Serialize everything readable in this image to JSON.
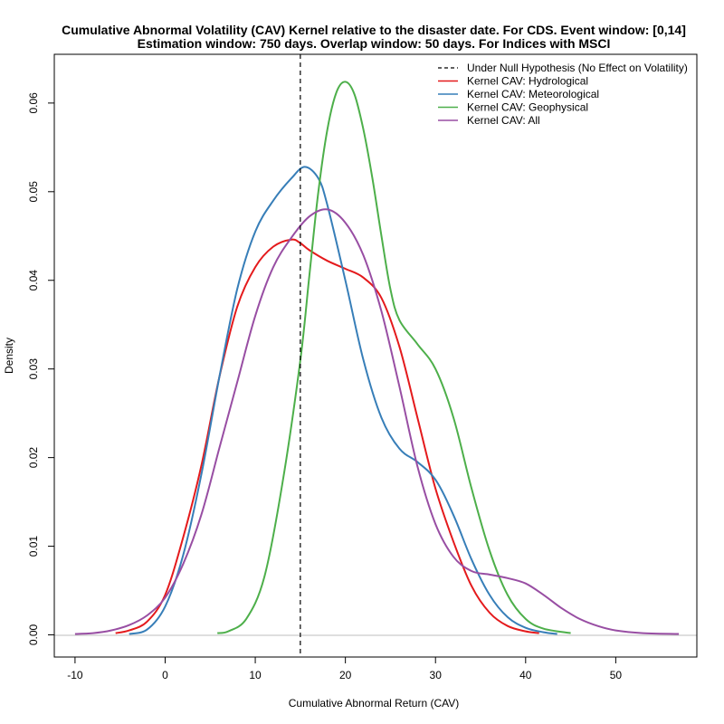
{
  "chart_data": {
    "type": "line",
    "title_line1": "Cumulative Abnormal Volatility (CAV) Kernel relative to the disaster date. For CDS. Event window: [0,14]",
    "title_line2": "Estimation window: 750 days. Overlap window: 50 days. For Indices with MSCI",
    "xlabel": "Cumulative Abnormal Return (CAV)",
    "ylabel": "Density",
    "xlim": [
      -12.3,
      59.0
    ],
    "ylim": [
      -0.0025,
      0.0655
    ],
    "x_ticks": [
      -10,
      0,
      10,
      20,
      30,
      40,
      50
    ],
    "x_tick_labels": [
      "-10",
      "0",
      "10",
      "20",
      "30",
      "40",
      "50"
    ],
    "y_ticks": [
      0.0,
      0.01,
      0.02,
      0.03,
      0.04,
      0.05,
      0.06
    ],
    "y_tick_labels": [
      "0.00",
      "0.01",
      "0.02",
      "0.03",
      "0.04",
      "0.05",
      "0.06"
    ],
    "legend_position": "top-right",
    "null_hypothesis": {
      "name": "Under Null Hypothesis (No Effect on Volatility)",
      "x": 15,
      "color": "#000000",
      "style": "dashed"
    },
    "series": [
      {
        "name": "Kernel CAV: Hydrological",
        "color": "#E41A1C",
        "points": [
          [
            -5.5,
            0.0002
          ],
          [
            -4,
            0.0005
          ],
          [
            -2,
            0.0015
          ],
          [
            0,
            0.0045
          ],
          [
            2,
            0.011
          ],
          [
            4,
            0.019
          ],
          [
            6,
            0.029
          ],
          [
            8,
            0.037
          ],
          [
            10,
            0.0415
          ],
          [
            12,
            0.0438
          ],
          [
            14,
            0.0446
          ],
          [
            15,
            0.0442
          ],
          [
            16,
            0.0434
          ],
          [
            18,
            0.0422
          ],
          [
            20,
            0.0413
          ],
          [
            22,
            0.0403
          ],
          [
            24,
            0.038
          ],
          [
            26,
            0.0325
          ],
          [
            28,
            0.0245
          ],
          [
            30,
            0.0165
          ],
          [
            32,
            0.0105
          ],
          [
            34,
            0.0055
          ],
          [
            36,
            0.0025
          ],
          [
            38,
            0.001
          ],
          [
            40,
            0.0004
          ],
          [
            41.5,
            0.0002
          ]
        ]
      },
      {
        "name": "Kernel CAV: Meteorological",
        "color": "#377EB8",
        "points": [
          [
            -4,
            0.0001
          ],
          [
            -2,
            0.0006
          ],
          [
            0,
            0.0032
          ],
          [
            2,
            0.009
          ],
          [
            4,
            0.018
          ],
          [
            6,
            0.029
          ],
          [
            8,
            0.039
          ],
          [
            10,
            0.0455
          ],
          [
            12,
            0.049
          ],
          [
            14,
            0.0515
          ],
          [
            15.5,
            0.0528
          ],
          [
            17,
            0.0515
          ],
          [
            18,
            0.0485
          ],
          [
            20,
            0.04
          ],
          [
            22,
            0.031
          ],
          [
            24,
            0.0245
          ],
          [
            26,
            0.021
          ],
          [
            28,
            0.0195
          ],
          [
            30,
            0.0175
          ],
          [
            32,
            0.0135
          ],
          [
            34,
            0.0085
          ],
          [
            36,
            0.0045
          ],
          [
            38,
            0.002
          ],
          [
            40,
            0.0008
          ],
          [
            42,
            0.0003
          ],
          [
            43.5,
            0.0001
          ]
        ]
      },
      {
        "name": "Kernel CAV: Geophysical",
        "color": "#4DAF4A",
        "points": [
          [
            5.8,
            0.0002
          ],
          [
            7,
            0.0004
          ],
          [
            9,
            0.0018
          ],
          [
            11,
            0.0065
          ],
          [
            13,
            0.017
          ],
          [
            15,
            0.031
          ],
          [
            16,
            0.0405
          ],
          [
            17,
            0.05
          ],
          [
            18,
            0.057
          ],
          [
            19,
            0.0612
          ],
          [
            20,
            0.0624
          ],
          [
            21,
            0.061
          ],
          [
            22,
            0.057
          ],
          [
            23,
            0.0515
          ],
          [
            24,
            0.045
          ],
          [
            25,
            0.039
          ],
          [
            26,
            0.0355
          ],
          [
            28,
            0.0328
          ],
          [
            30,
            0.03
          ],
          [
            32,
            0.0245
          ],
          [
            34,
            0.0165
          ],
          [
            36,
            0.0095
          ],
          [
            38,
            0.0045
          ],
          [
            40,
            0.0018
          ],
          [
            42,
            0.0007
          ],
          [
            45,
            0.0002
          ]
        ]
      },
      {
        "name": "Kernel CAV: All",
        "color": "#984EA3",
        "points": [
          [
            -10,
            0.0001
          ],
          [
            -8,
            0.0002
          ],
          [
            -6,
            0.0005
          ],
          [
            -4,
            0.0011
          ],
          [
            -2,
            0.0022
          ],
          [
            0,
            0.0042
          ],
          [
            2,
            0.008
          ],
          [
            4,
            0.0135
          ],
          [
            6,
            0.021
          ],
          [
            8,
            0.0285
          ],
          [
            10,
            0.036
          ],
          [
            12,
            0.0415
          ],
          [
            14,
            0.0448
          ],
          [
            16,
            0.0472
          ],
          [
            18,
            0.048
          ],
          [
            20,
            0.0465
          ],
          [
            22,
            0.0428
          ],
          [
            24,
            0.0365
          ],
          [
            26,
            0.028
          ],
          [
            28,
            0.019
          ],
          [
            30,
            0.0125
          ],
          [
            32,
            0.0088
          ],
          [
            34,
            0.0072
          ],
          [
            36,
            0.0068
          ],
          [
            38,
            0.0064
          ],
          [
            40,
            0.0058
          ],
          [
            42,
            0.0045
          ],
          [
            44,
            0.003
          ],
          [
            46,
            0.0018
          ],
          [
            48,
            0.001
          ],
          [
            50,
            0.0005
          ],
          [
            53,
            0.0002
          ],
          [
            57,
            0.0001
          ]
        ]
      }
    ]
  }
}
